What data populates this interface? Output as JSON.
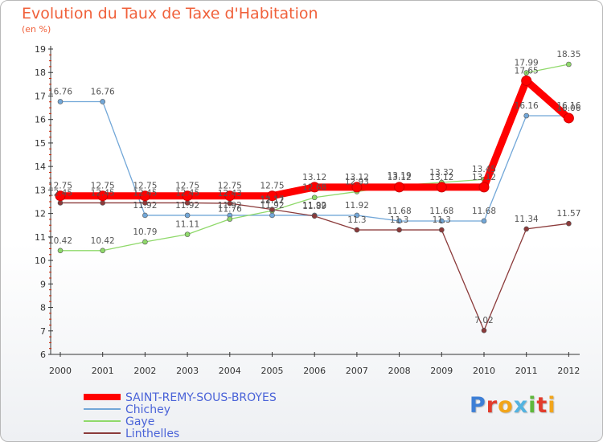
{
  "title": "Evolution du Taux de Taxe d'Habitation",
  "subtitle": "(en %)",
  "logo": {
    "text": "Proxiti",
    "colors": [
      "#3d7fd6",
      "#e23c2c",
      "#f2a51a",
      "#53b3e0",
      "#5fb83b",
      "#e23c2c",
      "#f2a51a"
    ]
  },
  "chart_data": {
    "type": "line",
    "title": "Evolution du Taux de Taxe d'Habitation",
    "ylabel": "(en %)",
    "xlabel": "",
    "ylim": [
      6,
      19
    ],
    "y_ticks": [
      6,
      7,
      8,
      9,
      10,
      11,
      12,
      13,
      14,
      15,
      16,
      17,
      18,
      19
    ],
    "categories": [
      "2000",
      "2001",
      "2002",
      "2003",
      "2004",
      "2005",
      "2006",
      "2007",
      "2008",
      "2009",
      "2010",
      "2011",
      "2012"
    ],
    "legend_position": "bottom-left",
    "series": [
      {
        "name": "SAINT-REMY-SOUS-BROYES",
        "color": "#ff0000",
        "values": [
          12.75,
          12.75,
          12.75,
          12.75,
          12.75,
          12.75,
          13.12,
          13.12,
          13.12,
          13.12,
          13.12,
          17.65,
          16.06
        ],
        "labels": [
          "12.75",
          "12.75",
          "12.75",
          "12.75",
          "12.75",
          "12.75",
          "13.12",
          "13.12",
          "13.12",
          "13.12",
          "13.12",
          "17.65",
          "16.06"
        ]
      },
      {
        "name": "Chichey",
        "color": "#72a7d8",
        "values": [
          16.76,
          16.76,
          11.92,
          11.92,
          11.92,
          11.92,
          11.92,
          11.92,
          11.68,
          11.68,
          11.68,
          16.16,
          16.16
        ],
        "labels": [
          "16.76",
          "16.76",
          "11.92",
          "11.92",
          "11.92",
          "11.92",
          "11.92",
          "11.92",
          "11.68",
          "11.68",
          "11.68",
          "16.16",
          "16.16"
        ]
      },
      {
        "name": "Gaye",
        "color": "#8fd96a",
        "values": [
          10.42,
          10.42,
          10.79,
          11.11,
          11.76,
          12.12,
          12.68,
          12.93,
          13.19,
          13.32,
          13.45,
          17.99,
          18.35
        ],
        "labels": [
          "10.42",
          "10.42",
          "10.79",
          "11.11",
          "11.76",
          "12.12",
          "12.68",
          "12.93",
          "13.19",
          "13.32",
          "13.45",
          "17.99",
          "18.35"
        ]
      },
      {
        "name": "Linthelles",
        "color": "#8b3a3a",
        "values": [
          12.45,
          12.45,
          12.45,
          12.45,
          12.43,
          12.17,
          11.89,
          11.3,
          11.3,
          11.3,
          7.02,
          11.34,
          11.57
        ],
        "labels": [
          "12.45",
          "12.45",
          "12.45",
          "12.45",
          "12.43",
          "12.17",
          "11.89",
          "11.3",
          "11.3",
          "11.3",
          "7.02",
          "11.34",
          "11.57"
        ]
      }
    ]
  }
}
